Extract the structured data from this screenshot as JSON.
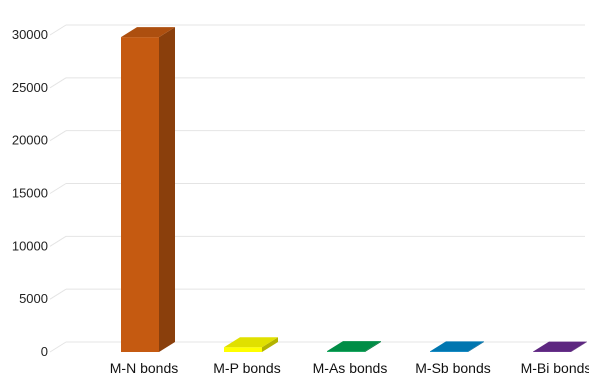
{
  "chart_data": {
    "type": "bar",
    "style": "3d-column",
    "categories": [
      "M-N bonds",
      "M-P bonds",
      "M-As bonds",
      "M-Sb bonds",
      "M-Bi bonds"
    ],
    "values": [
      29800,
      450,
      80,
      60,
      40
    ],
    "colors": [
      "#c55a11",
      "#ffff00",
      "#00a050",
      "#0086c8",
      "#6a2c91"
    ],
    "title": "",
    "xlabel": "",
    "ylabel": "",
    "ylim": [
      0,
      30000
    ],
    "yticks": [
      0,
      5000,
      10000,
      15000,
      20000,
      25000,
      30000
    ],
    "grid": true,
    "legend": "none"
  }
}
